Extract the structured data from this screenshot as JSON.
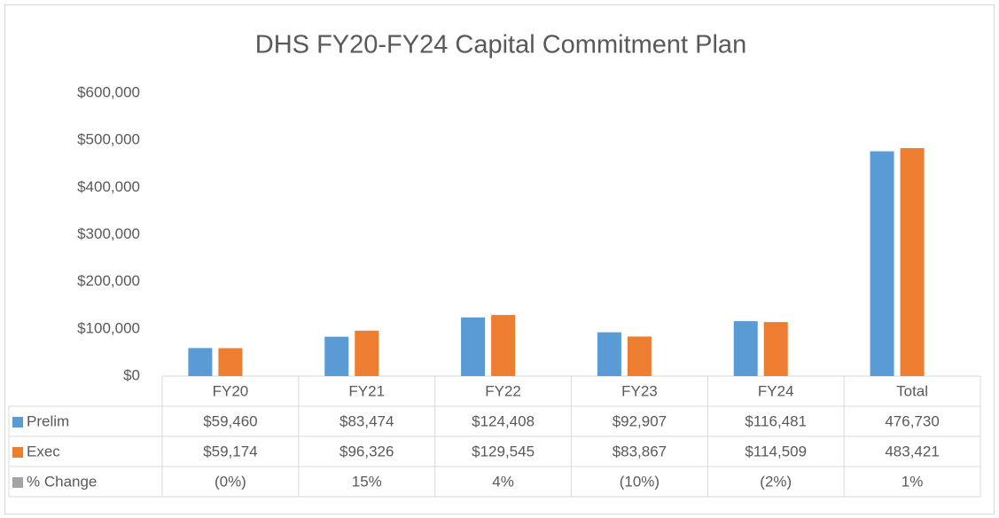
{
  "chart_data": {
    "type": "bar",
    "title": "DHS FY20-FY24 Capital Commitment Plan",
    "categories": [
      "FY20",
      "FY21",
      "FY22",
      "FY23",
      "FY24",
      "Total"
    ],
    "series": [
      {
        "name": "Prelim",
        "color": "#5b9bd5",
        "values": [
          59460,
          83474,
          124408,
          92907,
          116481,
          476730
        ],
        "value_labels": [
          "$59,460",
          "$83,474",
          "$124,408",
          "$92,907",
          "$116,481",
          "476,730"
        ]
      },
      {
        "name": "Exec",
        "color": "#ed7d31",
        "values": [
          59174,
          96326,
          129545,
          83867,
          114509,
          483421
        ],
        "value_labels": [
          "$59,174",
          "$96,326",
          "$129,545",
          "$83,867",
          "$114,509",
          "483,421"
        ]
      },
      {
        "name": "% Change",
        "color": "#a5a5a5",
        "values": [
          -0.48,
          15,
          4,
          -10,
          -2,
          1
        ],
        "value_labels": [
          "(0%)",
          "15%",
          "4%",
          "(10%)",
          "(2%)",
          "1%"
        ]
      }
    ],
    "ylim": [
      0,
      600000
    ],
    "yticks": [
      {
        "value": 0,
        "label": "$0"
      },
      {
        "value": 100000,
        "label": "$100,000"
      },
      {
        "value": 200000,
        "label": "$200,000"
      },
      {
        "value": 300000,
        "label": "$300,000"
      },
      {
        "value": 400000,
        "label": "$400,000"
      },
      {
        "value": 500000,
        "label": "$500,000"
      },
      {
        "value": 600000,
        "label": "$600,000"
      }
    ],
    "grid": false
  }
}
